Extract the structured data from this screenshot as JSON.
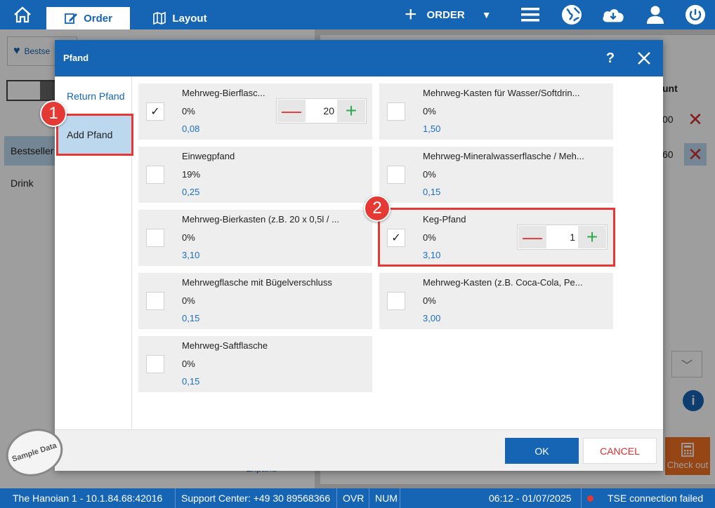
{
  "topbar": {
    "tabs": [
      {
        "label": "Order",
        "icon": "edit-icon",
        "active": true
      },
      {
        "label": "Layout",
        "icon": "map-icon",
        "active": false
      }
    ],
    "order_label": "ORDER"
  },
  "background": {
    "chip_label": "Bestse",
    "categories": [
      "Bestseller",
      "Drink"
    ],
    "right_header": "unt",
    "right_values": [
      "00",
      "60"
    ],
    "expand_label": "Expand",
    "checkout_label": "Check out",
    "sample_label": "Sample Data"
  },
  "dialog": {
    "title": "Pfand",
    "help": "?",
    "side": {
      "return_label": "Return Pfand",
      "add_label": "Add Pfand"
    },
    "items": [
      {
        "name": "Mehrweg-Bierflasc...",
        "rate": "0%",
        "price": "0,08",
        "checked": true,
        "qty": "20"
      },
      {
        "name": "Mehrweg-Kasten für Wasser/Softdrin...",
        "rate": "0%",
        "price": "1,50",
        "checked": false
      },
      {
        "name": "Einwegpfand",
        "rate": "19%",
        "price": "0,25",
        "checked": false
      },
      {
        "name": "Mehrweg-Mineralwasserflasche / Meh...",
        "rate": "0%",
        "price": "0,15",
        "checked": false
      },
      {
        "name": "Mehrweg-Bierkasten (z.B. 20 x 0,5l / ...",
        "rate": "0%",
        "price": "3,10",
        "checked": false
      },
      {
        "name": "Keg-Pfand",
        "rate": "0%",
        "price": "3,10",
        "checked": true,
        "qty": "1"
      },
      {
        "name": "Mehrwegflasche mit Bügelverschluss",
        "rate": "0%",
        "price": "0,15",
        "checked": false
      },
      {
        "name": "Mehrweg-Kasten (z.B. Coca-Cola, Pe...",
        "rate": "0%",
        "price": "3,00",
        "checked": false
      },
      {
        "name": "Mehrweg-Saftflasche",
        "rate": "0%",
        "price": "0,15",
        "checked": false
      }
    ],
    "ok_label": "OK",
    "cancel_label": "CANCEL"
  },
  "callouts": [
    "1",
    "2"
  ],
  "statusbar": {
    "location": "The Hanoian 1 - 10.1.84.68:42016",
    "support": "Support Center: +49 30 89568366",
    "ovr": "OVR",
    "num": "NUM",
    "datetime": "06:12 - 01/07/2025",
    "tse": "TSE connection failed"
  },
  "colors": {
    "primary": "#1565b4",
    "danger": "#e53935",
    "success": "#2eaa4a",
    "checkout": "#f37021"
  }
}
